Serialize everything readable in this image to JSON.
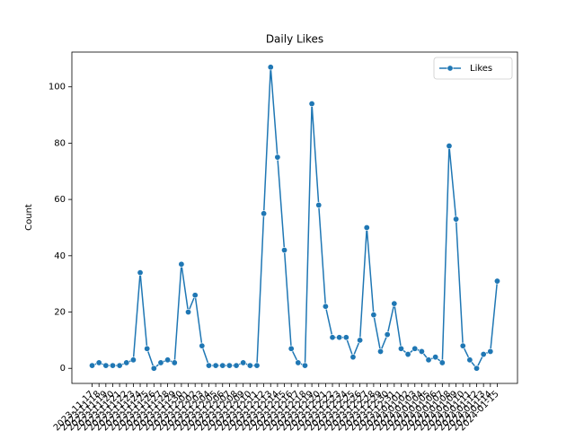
{
  "chart_data": {
    "type": "line",
    "title": "Daily Likes",
    "y_label": "Count",
    "categories": [
      "2023-11-17",
      "2023-11-18",
      "2023-11-19",
      "2023-11-20",
      "2023-11-21",
      "2023-11-22",
      "2023-11-23",
      "2023-11-24",
      "2023-11-25",
      "2023-11-26",
      "2023-11-27",
      "2023-11-28",
      "2023-11-29",
      "2023-11-30",
      "2023-12-01",
      "2023-12-02",
      "2023-12-03",
      "2023-12-04",
      "2023-12-05",
      "2023-12-06",
      "2023-12-07",
      "2023-12-08",
      "2023-12-09",
      "2023-12-10",
      "2023-12-11",
      "2023-12-12",
      "2023-12-13",
      "2023-12-14",
      "2023-12-15",
      "2023-12-16",
      "2023-12-17",
      "2023-12-18",
      "2023-12-19",
      "2023-12-20",
      "2023-12-21",
      "2023-12-22",
      "2023-12-23",
      "2023-12-24",
      "2023-12-25",
      "2023-12-26",
      "2023-12-27",
      "2023-12-28",
      "2023-12-29",
      "2023-12-30",
      "2023-12-31",
      "2024-01-01",
      "2024-01-02",
      "2024-01-03",
      "2024-01-04",
      "2024-01-05",
      "2024-01-06",
      "2024-01-07",
      "2024-01-08",
      "2024-01-09",
      "2024-01-10",
      "2024-01-11",
      "2024-01-12",
      "2024-01-13",
      "2024-01-14",
      "2024-01-15"
    ],
    "series": [
      {
        "name": "Likes",
        "color": "#1f77b4",
        "values": [
          1,
          2,
          1,
          1,
          1,
          2,
          3,
          34,
          7,
          0,
          2,
          3,
          2,
          37,
          20,
          26,
          8,
          1,
          1,
          1,
          1,
          1,
          2,
          1,
          1,
          55,
          107,
          75,
          42,
          7,
          2,
          1,
          94,
          58,
          22,
          11,
          11,
          11,
          4,
          10,
          50,
          19,
          6,
          12,
          23,
          7,
          5,
          7,
          6,
          3,
          4,
          2,
          79,
          53,
          8,
          3,
          0,
          5,
          6,
          31
        ]
      }
    ],
    "ylim": [
      -5.35,
      112.35
    ],
    "yticks": [
      0,
      20,
      40,
      60,
      80,
      100
    ],
    "grid": false,
    "legend": "upper right"
  }
}
